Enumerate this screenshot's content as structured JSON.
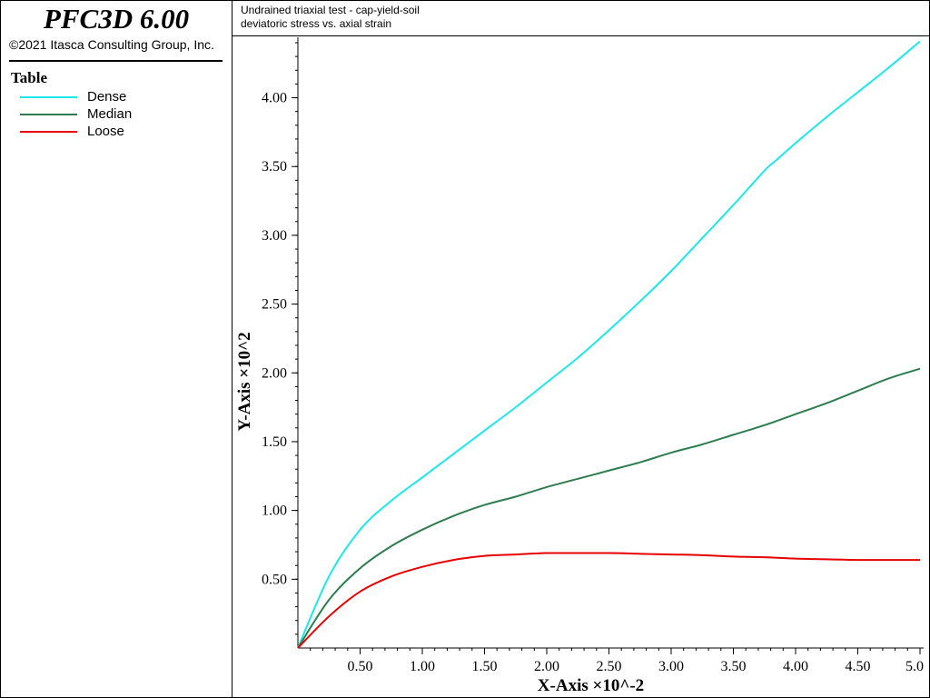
{
  "app": {
    "title": "PFC3D 6.00",
    "copyright": "©2021 Itasca Consulting Group, Inc."
  },
  "legend": {
    "title": "Table"
  },
  "plot": {
    "title": "Undrained triaxial test - cap-yield-soil",
    "subtitle": "deviatoric stress vs. axial strain"
  },
  "chart_data": {
    "type": "line",
    "xlabel": "X-Axis ×10^-2",
    "ylabel": "Y-Axis ×10^2",
    "xlim": [
      0,
      5.0
    ],
    "ylim": [
      0,
      4.4
    ],
    "x_ticks": [
      0.5,
      1.0,
      1.5,
      2.0,
      2.5,
      3.0,
      3.5,
      4.0,
      4.5,
      5.0
    ],
    "x_tick_labels": [
      "0.50",
      "1.00",
      "1.50",
      "2.00",
      "2.50",
      "3.00",
      "3.50",
      "4.00",
      "4.50",
      "5.0"
    ],
    "y_ticks": [
      0.5,
      1.0,
      1.5,
      2.0,
      2.5,
      3.0,
      3.5,
      4.0
    ],
    "y_tick_labels": [
      "0.50",
      "1.00",
      "1.50",
      "2.00",
      "2.50",
      "3.00",
      "3.50",
      "4.00"
    ],
    "grid": false,
    "legend_position": "left panel",
    "series": [
      {
        "name": "Dense",
        "color": "#1fe6ea",
        "x": [
          0,
          0.25,
          0.5,
          0.75,
          1.0,
          1.25,
          1.5,
          1.75,
          2.0,
          2.25,
          2.5,
          2.75,
          3.0,
          3.25,
          3.5,
          3.75,
          3.85,
          4.0,
          4.25,
          4.5,
          4.75,
          5.0
        ],
        "y": [
          0,
          0.52,
          0.86,
          1.07,
          1.24,
          1.41,
          1.58,
          1.75,
          1.93,
          2.11,
          2.31,
          2.52,
          2.74,
          2.98,
          3.22,
          3.47,
          3.55,
          3.67,
          3.86,
          4.04,
          4.22,
          4.41
        ]
      },
      {
        "name": "Median",
        "color": "#2e7d4f",
        "x": [
          0,
          0.25,
          0.5,
          0.75,
          1.0,
          1.25,
          1.5,
          1.75,
          2.0,
          2.25,
          2.5,
          2.75,
          3.0,
          3.25,
          3.5,
          3.75,
          4.0,
          4.25,
          4.5,
          4.75,
          5.0
        ],
        "y": [
          0,
          0.35,
          0.58,
          0.74,
          0.86,
          0.96,
          1.04,
          1.1,
          1.17,
          1.23,
          1.29,
          1.35,
          1.42,
          1.48,
          1.55,
          1.62,
          1.7,
          1.78,
          1.87,
          1.96,
          2.03
        ]
      },
      {
        "name": "Loose",
        "color": "#e60000",
        "x": [
          0,
          0.25,
          0.5,
          0.75,
          1.0,
          1.25,
          1.5,
          1.75,
          2.0,
          2.25,
          2.5,
          2.75,
          3.0,
          3.25,
          3.5,
          3.75,
          4.0,
          4.25,
          4.5,
          4.75,
          5.0
        ],
        "y": [
          0,
          0.23,
          0.41,
          0.52,
          0.59,
          0.64,
          0.67,
          0.68,
          0.69,
          0.69,
          0.69,
          0.685,
          0.68,
          0.675,
          0.665,
          0.66,
          0.65,
          0.645,
          0.64,
          0.64,
          0.64
        ]
      }
    ]
  }
}
